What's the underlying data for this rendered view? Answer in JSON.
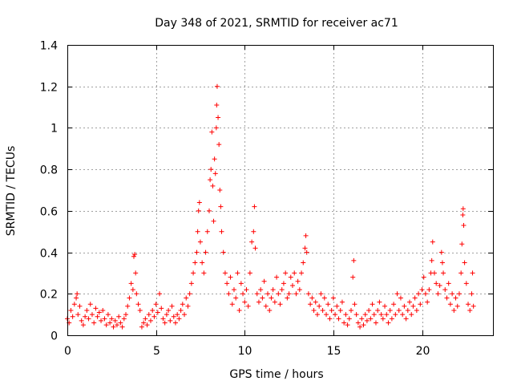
{
  "chart_data": {
    "type": "scatter",
    "title": "Day 348 of 2021, SRMTID for receiver ac71",
    "xlabel": "GPS time / hours",
    "ylabel": "SRMTID / TECUs",
    "xlim": [
      0,
      24
    ],
    "ylim": [
      0,
      1.4
    ],
    "xticks": [
      0,
      5,
      10,
      15,
      20
    ],
    "xtick_labels": [
      "0",
      "5",
      "10",
      "15",
      "20"
    ],
    "yticks": [
      0,
      0.2,
      0.4,
      0.6,
      0.8,
      1.0,
      1.2,
      1.4
    ],
    "ytick_labels": [
      "0",
      "0.2",
      "0.4",
      "0.6",
      "0.8",
      "1",
      "1.2",
      "1.4"
    ],
    "grid": true,
    "marker": "+",
    "color": "#ff0000",
    "series": [
      {
        "name": "SRMTID",
        "points": [
          [
            0.0,
            0.08
          ],
          [
            0.1,
            0.06
          ],
          [
            0.2,
            0.12
          ],
          [
            0.3,
            0.09
          ],
          [
            0.4,
            0.15
          ],
          [
            0.5,
            0.18
          ],
          [
            0.55,
            0.2
          ],
          [
            0.6,
            0.1
          ],
          [
            0.7,
            0.14
          ],
          [
            0.8,
            0.07
          ],
          [
            0.9,
            0.05
          ],
          [
            1.0,
            0.09
          ],
          [
            1.1,
            0.12
          ],
          [
            1.2,
            0.08
          ],
          [
            1.3,
            0.15
          ],
          [
            1.4,
            0.1
          ],
          [
            1.5,
            0.06
          ],
          [
            1.6,
            0.13
          ],
          [
            1.7,
            0.09
          ],
          [
            1.8,
            0.11
          ],
          [
            1.9,
            0.07
          ],
          [
            2.0,
            0.12
          ],
          [
            2.1,
            0.08
          ],
          [
            2.2,
            0.05
          ],
          [
            2.3,
            0.1
          ],
          [
            2.4,
            0.06
          ],
          [
            2.5,
            0.08
          ],
          [
            2.6,
            0.04
          ],
          [
            2.7,
            0.07
          ],
          [
            2.8,
            0.05
          ],
          [
            2.9,
            0.09
          ],
          [
            3.0,
            0.06
          ],
          [
            3.1,
            0.04
          ],
          [
            3.2,
            0.08
          ],
          [
            3.3,
            0.1
          ],
          [
            3.4,
            0.14
          ],
          [
            3.5,
            0.18
          ],
          [
            3.6,
            0.25
          ],
          [
            3.7,
            0.22
          ],
          [
            3.75,
            0.38
          ],
          [
            3.8,
            0.39
          ],
          [
            3.85,
            0.3
          ],
          [
            3.9,
            0.2
          ],
          [
            4.0,
            0.15
          ],
          [
            4.1,
            0.12
          ],
          [
            4.2,
            0.04
          ],
          [
            4.3,
            0.06
          ],
          [
            4.4,
            0.08
          ],
          [
            4.5,
            0.05
          ],
          [
            4.6,
            0.1
          ],
          [
            4.7,
            0.07
          ],
          [
            4.8,
            0.12
          ],
          [
            4.9,
            0.09
          ],
          [
            5.0,
            0.15
          ],
          [
            5.1,
            0.11
          ],
          [
            5.2,
            0.2
          ],
          [
            5.3,
            0.13
          ],
          [
            5.4,
            0.08
          ],
          [
            5.5,
            0.06
          ],
          [
            5.6,
            0.1
          ],
          [
            5.7,
            0.12
          ],
          [
            5.8,
            0.07
          ],
          [
            5.9,
            0.14
          ],
          [
            6.0,
            0.09
          ],
          [
            6.1,
            0.06
          ],
          [
            6.2,
            0.1
          ],
          [
            6.3,
            0.08
          ],
          [
            6.4,
            0.12
          ],
          [
            6.5,
            0.15
          ],
          [
            6.6,
            0.1
          ],
          [
            6.7,
            0.18
          ],
          [
            6.8,
            0.14
          ],
          [
            6.9,
            0.2
          ],
          [
            7.0,
            0.25
          ],
          [
            7.1,
            0.3
          ],
          [
            7.2,
            0.35
          ],
          [
            7.3,
            0.4
          ],
          [
            7.35,
            0.5
          ],
          [
            7.4,
            0.6
          ],
          [
            7.45,
            0.64
          ],
          [
            7.5,
            0.45
          ],
          [
            7.6,
            0.35
          ],
          [
            7.7,
            0.3
          ],
          [
            7.8,
            0.4
          ],
          [
            7.9,
            0.5
          ],
          [
            8.0,
            0.6
          ],
          [
            8.05,
            0.75
          ],
          [
            8.1,
            0.8
          ],
          [
            8.15,
            0.98
          ],
          [
            8.2,
            0.72
          ],
          [
            8.25,
            0.55
          ],
          [
            8.3,
            0.85
          ],
          [
            8.35,
            0.78
          ],
          [
            8.4,
            1.0
          ],
          [
            8.42,
            1.11
          ],
          [
            8.45,
            1.2
          ],
          [
            8.5,
            1.05
          ],
          [
            8.55,
            0.92
          ],
          [
            8.6,
            0.7
          ],
          [
            8.65,
            0.62
          ],
          [
            8.7,
            0.5
          ],
          [
            8.8,
            0.4
          ],
          [
            8.9,
            0.3
          ],
          [
            9.0,
            0.25
          ],
          [
            9.1,
            0.2
          ],
          [
            9.2,
            0.28
          ],
          [
            9.3,
            0.15
          ],
          [
            9.4,
            0.22
          ],
          [
            9.5,
            0.18
          ],
          [
            9.6,
            0.3
          ],
          [
            9.7,
            0.12
          ],
          [
            9.8,
            0.25
          ],
          [
            9.9,
            0.2
          ],
          [
            10.0,
            0.16
          ],
          [
            10.1,
            0.22
          ],
          [
            10.2,
            0.14
          ],
          [
            10.3,
            0.3
          ],
          [
            10.4,
            0.45
          ],
          [
            10.5,
            0.5
          ],
          [
            10.55,
            0.62
          ],
          [
            10.6,
            0.42
          ],
          [
            10.7,
            0.2
          ],
          [
            10.8,
            0.16
          ],
          [
            10.9,
            0.22
          ],
          [
            11.0,
            0.18
          ],
          [
            11.1,
            0.26
          ],
          [
            11.2,
            0.14
          ],
          [
            11.3,
            0.2
          ],
          [
            11.4,
            0.12
          ],
          [
            11.5,
            0.18
          ],
          [
            11.6,
            0.22
          ],
          [
            11.7,
            0.16
          ],
          [
            11.8,
            0.28
          ],
          [
            11.9,
            0.2
          ],
          [
            12.0,
            0.15
          ],
          [
            12.1,
            0.22
          ],
          [
            12.2,
            0.25
          ],
          [
            12.3,
            0.3
          ],
          [
            12.4,
            0.18
          ],
          [
            12.5,
            0.2
          ],
          [
            12.6,
            0.28
          ],
          [
            12.7,
            0.24
          ],
          [
            12.8,
            0.3
          ],
          [
            12.9,
            0.2
          ],
          [
            13.0,
            0.26
          ],
          [
            13.1,
            0.22
          ],
          [
            13.2,
            0.3
          ],
          [
            13.3,
            0.35
          ],
          [
            13.4,
            0.42
          ],
          [
            13.45,
            0.48
          ],
          [
            13.5,
            0.4
          ],
          [
            13.6,
            0.2
          ],
          [
            13.7,
            0.15
          ],
          [
            13.8,
            0.18
          ],
          [
            13.9,
            0.12
          ],
          [
            14.0,
            0.16
          ],
          [
            14.1,
            0.1
          ],
          [
            14.2,
            0.14
          ],
          [
            14.3,
            0.2
          ],
          [
            14.4,
            0.12
          ],
          [
            14.5,
            0.18
          ],
          [
            14.6,
            0.1
          ],
          [
            14.7,
            0.15
          ],
          [
            14.8,
            0.08
          ],
          [
            14.9,
            0.12
          ],
          [
            15.0,
            0.18
          ],
          [
            15.1,
            0.1
          ],
          [
            15.2,
            0.14
          ],
          [
            15.3,
            0.08
          ],
          [
            15.4,
            0.12
          ],
          [
            15.5,
            0.16
          ],
          [
            15.6,
            0.06
          ],
          [
            15.7,
            0.1
          ],
          [
            15.8,
            0.05
          ],
          [
            15.9,
            0.08
          ],
          [
            16.0,
            0.12
          ],
          [
            16.1,
            0.28
          ],
          [
            16.15,
            0.36
          ],
          [
            16.2,
            0.15
          ],
          [
            16.3,
            0.1
          ],
          [
            16.4,
            0.06
          ],
          [
            16.5,
            0.04
          ],
          [
            16.6,
            0.08
          ],
          [
            16.7,
            0.05
          ],
          [
            16.8,
            0.1
          ],
          [
            16.9,
            0.07
          ],
          [
            17.0,
            0.12
          ],
          [
            17.1,
            0.08
          ],
          [
            17.2,
            0.15
          ],
          [
            17.3,
            0.1
          ],
          [
            17.4,
            0.06
          ],
          [
            17.5,
            0.12
          ],
          [
            17.6,
            0.16
          ],
          [
            17.7,
            0.1
          ],
          [
            17.8,
            0.08
          ],
          [
            17.9,
            0.14
          ],
          [
            18.0,
            0.1
          ],
          [
            18.1,
            0.06
          ],
          [
            18.2,
            0.12
          ],
          [
            18.3,
            0.08
          ],
          [
            18.4,
            0.15
          ],
          [
            18.5,
            0.1
          ],
          [
            18.6,
            0.2
          ],
          [
            18.7,
            0.12
          ],
          [
            18.8,
            0.18
          ],
          [
            18.9,
            0.1
          ],
          [
            19.0,
            0.14
          ],
          [
            19.1,
            0.08
          ],
          [
            19.2,
            0.12
          ],
          [
            19.3,
            0.16
          ],
          [
            19.4,
            0.1
          ],
          [
            19.5,
            0.14
          ],
          [
            19.6,
            0.18
          ],
          [
            19.7,
            0.12
          ],
          [
            19.8,
            0.2
          ],
          [
            19.9,
            0.15
          ],
          [
            20.0,
            0.22
          ],
          [
            20.1,
            0.28
          ],
          [
            20.2,
            0.2
          ],
          [
            20.3,
            0.16
          ],
          [
            20.4,
            0.22
          ],
          [
            20.5,
            0.3
          ],
          [
            20.55,
            0.36
          ],
          [
            20.6,
            0.45
          ],
          [
            20.7,
            0.3
          ],
          [
            20.8,
            0.25
          ],
          [
            20.9,
            0.2
          ],
          [
            21.0,
            0.24
          ],
          [
            21.1,
            0.4
          ],
          [
            21.15,
            0.35
          ],
          [
            21.2,
            0.3
          ],
          [
            21.3,
            0.22
          ],
          [
            21.4,
            0.18
          ],
          [
            21.5,
            0.25
          ],
          [
            21.6,
            0.15
          ],
          [
            21.7,
            0.2
          ],
          [
            21.8,
            0.12
          ],
          [
            21.9,
            0.18
          ],
          [
            22.0,
            0.14
          ],
          [
            22.1,
            0.2
          ],
          [
            22.2,
            0.3
          ],
          [
            22.25,
            0.44
          ],
          [
            22.3,
            0.58
          ],
          [
            22.32,
            0.61
          ],
          [
            22.35,
            0.53
          ],
          [
            22.4,
            0.35
          ],
          [
            22.5,
            0.25
          ],
          [
            22.6,
            0.15
          ],
          [
            22.7,
            0.12
          ],
          [
            22.8,
            0.2
          ],
          [
            22.85,
            0.3
          ],
          [
            22.9,
            0.14
          ]
        ]
      }
    ]
  }
}
